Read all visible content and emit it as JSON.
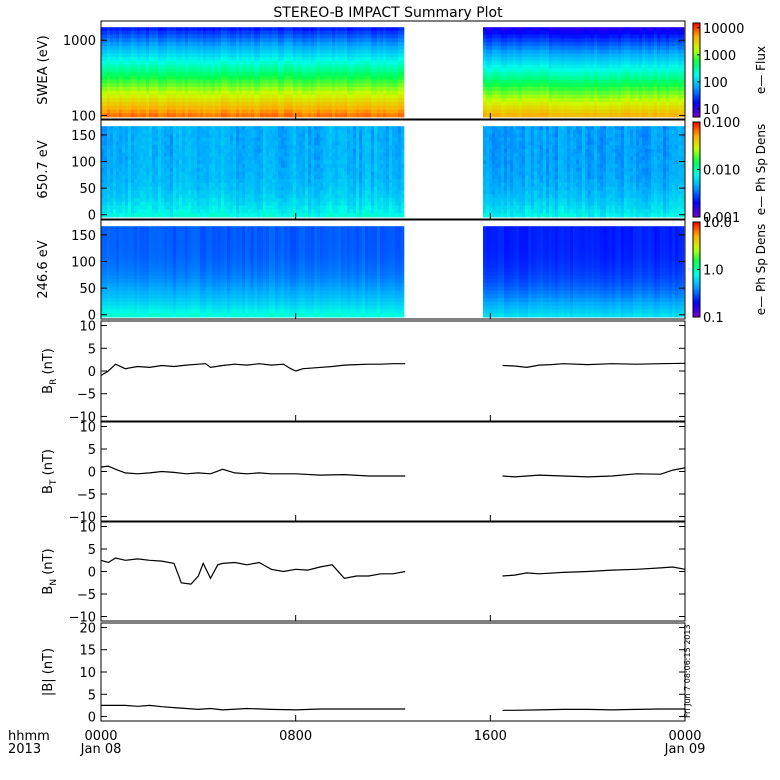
{
  "page": {
    "title": "STEREO-B IMPACT Summary Plot"
  },
  "footer": {
    "corner_top": "hhmm",
    "corner_bottom": "2013",
    "timestamp": "Fri Jun  7 08:06:15 2013"
  },
  "colors": {
    "line": "#000000",
    "axis": "#000000",
    "background": "#ffffff"
  },
  "chart_data": [
    {
      "id": "swea-flux",
      "type": "heatmap",
      "ylabel": "SWEA (eV)",
      "yscale": "log",
      "ylim": [
        90,
        1800
      ],
      "y_ticks": [
        100,
        1000
      ],
      "y_tick_labels": [
        "100",
        "1000"
      ],
      "colorbar": {
        "label": "e— Flux",
        "scale": "log",
        "range": [
          5,
          15000
        ],
        "ticks": [
          10,
          100,
          1000,
          10000
        ],
        "tick_labels": [
          "10",
          "100",
          "1000",
          "10000"
        ]
      },
      "data_gap_hours": [
        12.5,
        15.7
      ]
    },
    {
      "id": "pad-650",
      "type": "heatmap",
      "ylabel": "650.7 eV",
      "yscale": "linear",
      "ylim": [
        -8,
        178
      ],
      "y_ticks": [
        0,
        50,
        100,
        150
      ],
      "y_tick_labels": [
        "0",
        "50",
        "100",
        "150"
      ],
      "colorbar": {
        "label": "e—  Ph  Sp  Dens",
        "scale": "log",
        "range": [
          0.001,
          0.1
        ],
        "ticks": [
          0.001,
          0.01,
          0.1
        ],
        "tick_labels": [
          "0.001",
          "0.010",
          "0.100"
        ]
      },
      "data_gap_hours": [
        12.5,
        15.7
      ]
    },
    {
      "id": "pad-246",
      "type": "heatmap",
      "ylabel": "246.6 eV",
      "yscale": "linear",
      "ylim": [
        -8,
        178
      ],
      "y_ticks": [
        0,
        50,
        100,
        150
      ],
      "y_tick_labels": [
        "0",
        "50",
        "100",
        "150"
      ],
      "colorbar": {
        "label": "e—  Ph  Sp  Dens",
        "scale": "log",
        "range": [
          0.1,
          10
        ],
        "ticks": [
          0.1,
          1,
          10
        ],
        "tick_labels": [
          "0.1",
          "1.0",
          "10.0"
        ]
      },
      "data_gap_hours": [
        12.5,
        15.7
      ]
    },
    {
      "id": "br",
      "type": "line",
      "ylabel_main": "B",
      "ylabel_sub": "R",
      "ylabel_unit": " (nT)",
      "ylim": [
        -11,
        11
      ],
      "y_ticks": [
        -10,
        -5,
        0,
        5,
        10
      ],
      "y_tick_labels": [
        "−10",
        "−5",
        "0",
        "5",
        "10"
      ],
      "segments": [
        [
          [
            0,
            -1
          ],
          [
            0.3,
            0
          ],
          [
            0.6,
            1.5
          ],
          [
            1,
            0.5
          ],
          [
            1.5,
            1
          ],
          [
            2,
            0.8
          ],
          [
            2.5,
            1.2
          ],
          [
            3,
            1
          ],
          [
            3.5,
            1.3
          ],
          [
            4,
            1.5
          ],
          [
            4.3,
            1.6
          ],
          [
            4.5,
            0.8
          ],
          [
            5,
            1.2
          ],
          [
            5.5,
            1.5
          ],
          [
            6,
            1.3
          ],
          [
            6.5,
            1.6
          ],
          [
            7,
            1.3
          ],
          [
            7.5,
            1.5
          ],
          [
            7.8,
            0.5
          ],
          [
            8,
            0
          ],
          [
            8.3,
            0.5
          ],
          [
            8.8,
            0.7
          ],
          [
            9.5,
            1
          ],
          [
            10,
            1.3
          ],
          [
            10.5,
            1.4
          ],
          [
            11,
            1.5
          ],
          [
            11.5,
            1.5
          ],
          [
            12,
            1.6
          ],
          [
            12.5,
            1.6
          ]
        ],
        [
          [
            16.5,
            1.2
          ],
          [
            17,
            1.1
          ],
          [
            17.5,
            0.8
          ],
          [
            18,
            1.3
          ],
          [
            18.5,
            1.4
          ],
          [
            19,
            1.6
          ],
          [
            20,
            1.4
          ],
          [
            21,
            1.6
          ],
          [
            22,
            1.5
          ],
          [
            23,
            1.6
          ],
          [
            24,
            1.7
          ]
        ]
      ]
    },
    {
      "id": "bt",
      "type": "line",
      "ylabel_main": "B",
      "ylabel_sub": "T",
      "ylabel_unit": " (nT)",
      "ylim": [
        -11,
        11
      ],
      "y_ticks": [
        -10,
        -5,
        0,
        5,
        10
      ],
      "y_tick_labels": [
        "−10",
        "−5",
        "0",
        "5",
        "10"
      ],
      "segments": [
        [
          [
            0,
            1
          ],
          [
            0.3,
            1.2
          ],
          [
            0.6,
            0.5
          ],
          [
            1,
            -0.3
          ],
          [
            1.5,
            -0.5
          ],
          [
            2,
            -0.3
          ],
          [
            2.5,
            0
          ],
          [
            3,
            -0.2
          ],
          [
            3.5,
            -0.5
          ],
          [
            4,
            -0.3
          ],
          [
            4.5,
            -0.5
          ],
          [
            5,
            0.5
          ],
          [
            5.5,
            -0.3
          ],
          [
            6,
            -0.5
          ],
          [
            6.5,
            -0.3
          ],
          [
            7,
            -0.5
          ],
          [
            8,
            -0.5
          ],
          [
            9,
            -0.8
          ],
          [
            10,
            -0.7
          ],
          [
            11,
            -1
          ],
          [
            12,
            -1
          ],
          [
            12.5,
            -1
          ]
        ],
        [
          [
            16.5,
            -1
          ],
          [
            17,
            -1.2
          ],
          [
            17.5,
            -1
          ],
          [
            18,
            -0.8
          ],
          [
            19,
            -1
          ],
          [
            20,
            -1.2
          ],
          [
            21,
            -1
          ],
          [
            22,
            -0.5
          ],
          [
            23,
            -0.6
          ],
          [
            23.5,
            0.3
          ],
          [
            24,
            0.8
          ]
        ]
      ]
    },
    {
      "id": "bn",
      "type": "line",
      "ylabel_main": "B",
      "ylabel_sub": "N",
      "ylabel_unit": " (nT)",
      "ylim": [
        -11,
        11
      ],
      "y_ticks": [
        -10,
        -5,
        0,
        5,
        10
      ],
      "y_tick_labels": [
        "−10",
        "−5",
        "0",
        "5",
        "10"
      ],
      "segments": [
        [
          [
            0,
            2.5
          ],
          [
            0.3,
            2
          ],
          [
            0.6,
            3
          ],
          [
            1,
            2.5
          ],
          [
            1.5,
            2.8
          ],
          [
            2,
            2.5
          ],
          [
            2.5,
            2.3
          ],
          [
            3,
            1.8
          ],
          [
            3.3,
            -2.5
          ],
          [
            3.7,
            -2.8
          ],
          [
            4,
            -1
          ],
          [
            4.2,
            1.8
          ],
          [
            4.5,
            -1.5
          ],
          [
            4.8,
            1.5
          ],
          [
            5,
            1.8
          ],
          [
            5.5,
            2
          ],
          [
            6,
            1.5
          ],
          [
            6.5,
            2
          ],
          [
            7,
            0.5
          ],
          [
            7.5,
            0
          ],
          [
            8,
            0.5
          ],
          [
            8.5,
            0.3
          ],
          [
            9,
            1
          ],
          [
            9.5,
            1.5
          ],
          [
            10,
            -1.5
          ],
          [
            10.5,
            -1
          ],
          [
            11,
            -1
          ],
          [
            11.5,
            -0.5
          ],
          [
            12,
            -0.5
          ],
          [
            12.5,
            0
          ]
        ],
        [
          [
            16.5,
            -1
          ],
          [
            17,
            -0.8
          ],
          [
            17.5,
            -0.3
          ],
          [
            18,
            -0.5
          ],
          [
            19,
            -0.2
          ],
          [
            20,
            0
          ],
          [
            21,
            0.3
          ],
          [
            22,
            0.5
          ],
          [
            23,
            0.8
          ],
          [
            23.5,
            1
          ],
          [
            24,
            0.5
          ]
        ]
      ]
    },
    {
      "id": "bmag",
      "type": "line",
      "ylabel_main": "|B| (nT)",
      "ylabel_sub": "",
      "ylabel_unit": "",
      "ylim": [
        -1,
        21
      ],
      "y_ticks": [
        0,
        5,
        10,
        15,
        20
      ],
      "y_tick_labels": [
        "0",
        "5",
        "10",
        "15",
        "20"
      ],
      "segments": [
        [
          [
            0,
            2.5
          ],
          [
            0.5,
            2.5
          ],
          [
            1,
            2.5
          ],
          [
            1.5,
            2.3
          ],
          [
            2,
            2.5
          ],
          [
            2.5,
            2.2
          ],
          [
            3,
            2
          ],
          [
            3.5,
            1.8
          ],
          [
            4,
            1.6
          ],
          [
            4.5,
            1.8
          ],
          [
            5,
            1.5
          ],
          [
            6,
            1.8
          ],
          [
            7,
            1.6
          ],
          [
            8,
            1.5
          ],
          [
            9,
            1.7
          ],
          [
            10,
            1.7
          ],
          [
            11,
            1.7
          ],
          [
            12,
            1.7
          ],
          [
            12.5,
            1.7
          ]
        ],
        [
          [
            16.5,
            1.4
          ],
          [
            17,
            1.4
          ],
          [
            18,
            1.5
          ],
          [
            19,
            1.6
          ],
          [
            20,
            1.6
          ],
          [
            21,
            1.5
          ],
          [
            22,
            1.6
          ],
          [
            23,
            1.7
          ],
          [
            24,
            1.7
          ]
        ]
      ]
    }
  ],
  "x_axis": {
    "range_hours": [
      0,
      24
    ],
    "ticks": [
      0,
      8,
      16,
      24
    ],
    "tick_labels": [
      "0000",
      "0800",
      "1600",
      "0000"
    ],
    "date_labels": [
      "Jan 08",
      "",
      "",
      "Jan 09"
    ]
  }
}
